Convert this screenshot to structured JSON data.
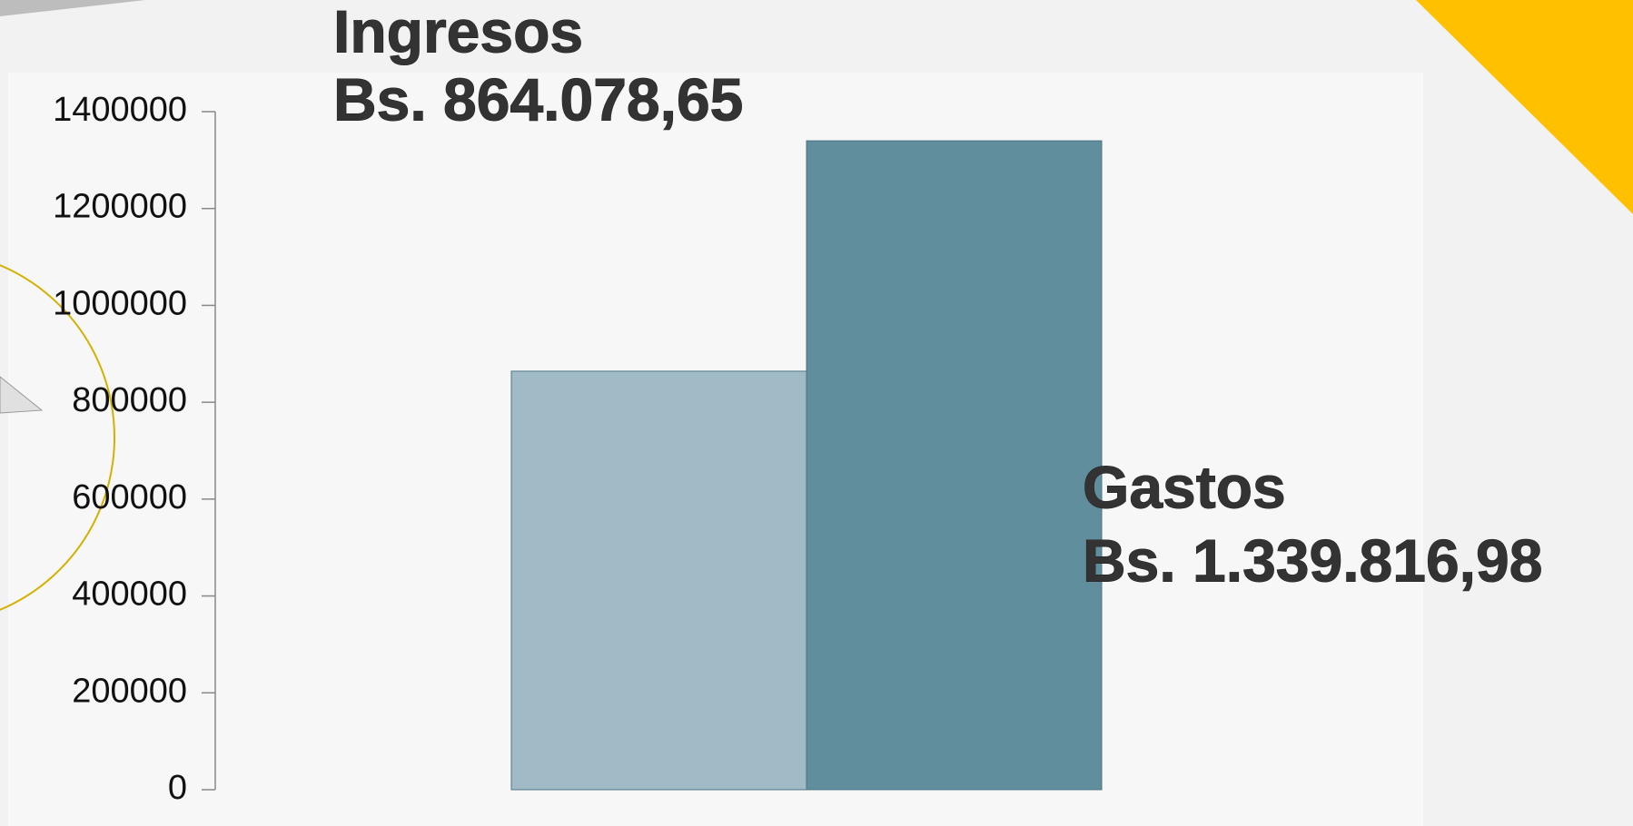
{
  "chart_data": {
    "type": "bar",
    "categories": [
      "Ingresos",
      "Gastos"
    ],
    "values": [
      864078.65,
      1339816.98
    ],
    "value_labels": [
      "Bs. 864.078,65",
      "Bs. 1.339.816,98"
    ],
    "colors": [
      "#a0bbc6",
      "#608e9c"
    ],
    "ylim": [
      0,
      1400000
    ],
    "yticks": [
      0,
      200000,
      400000,
      600000,
      800000,
      1000000,
      1200000,
      1400000
    ]
  }
}
